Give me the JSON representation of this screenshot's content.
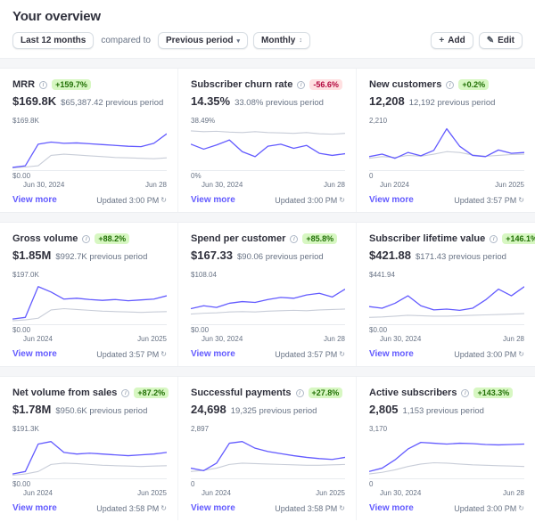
{
  "page": {
    "title": "Your overview"
  },
  "toolbar": {
    "date_range": "Last 12 months",
    "compared_to_label": "compared to",
    "comparison": "Previous period",
    "granularity": "Monthly",
    "add_label": "Add",
    "edit_label": "Edit"
  },
  "labels": {
    "view_more": "View more"
  },
  "icons": {
    "plus": "+",
    "pencil": "✎",
    "refresh": "↻",
    "chevron_down": "▾",
    "updown": "↕",
    "info": "i"
  },
  "colors": {
    "accent": "#635bff",
    "line_current": "#635bff",
    "line_previous": "#c8cdd8",
    "badge_positive_bg": "#d7f7c2",
    "badge_positive_text": "#217005",
    "badge_negative_bg": "#ffe0e1",
    "badge_negative_text": "#b3063d"
  },
  "cards": [
    {
      "title": "MRR",
      "badge": "+159.7%",
      "badge_type": "positive",
      "value": "$169.8K",
      "previous": "$65,387.42 previous period",
      "y_max": "$169.8K",
      "y_min": "$0.00",
      "x_start": "Jun 30, 2024",
      "x_end": "Jun 28",
      "updated": "Updated 3:00 PM",
      "series_current": [
        4,
        8,
        60,
        65,
        62,
        63,
        61,
        59,
        57,
        55,
        54,
        62,
        85
      ],
      "series_previous": [
        3,
        5,
        8,
        33,
        36,
        34,
        32,
        30,
        28,
        27,
        26,
        25,
        27
      ]
    },
    {
      "title": "Subscriber churn rate",
      "badge": "-56.6%",
      "badge_type": "negative",
      "value": "14.35%",
      "previous": "33.08% previous period",
      "y_max": "38.49%",
      "y_min": "0%",
      "x_start": "Jun 30, 2024",
      "x_end": "Jun 28",
      "updated": "Updated 3:00 PM",
      "series_current": [
        60,
        48,
        58,
        70,
        42,
        30,
        55,
        60,
        50,
        57,
        38,
        33,
        37
      ],
      "series_previous": [
        92,
        90,
        91,
        89,
        88,
        90,
        88,
        87,
        86,
        88,
        85,
        84,
        86
      ]
    },
    {
      "title": "New customers",
      "badge": "+0.2%",
      "badge_type": "positive",
      "value": "12,208",
      "previous": "12,192 previous period",
      "y_max": "2,210",
      "y_min": "0",
      "x_start": "Jun 2024",
      "x_end": "Jun 2025",
      "updated": "Updated 3:57 PM",
      "series_current": [
        30,
        36,
        26,
        40,
        32,
        45,
        97,
        55,
        33,
        30,
        46,
        38,
        40
      ],
      "series_previous": [
        26,
        30,
        28,
        33,
        31,
        36,
        42,
        40,
        34,
        31,
        33,
        35,
        36
      ]
    },
    {
      "title": "Gross volume",
      "badge": "+88.2%",
      "badge_type": "positive",
      "value": "$1.85M",
      "previous": "$992.7K previous period",
      "y_max": "$197.0K",
      "y_min": "$0.00",
      "x_start": "Jun 2024",
      "x_end": "Jun 2025",
      "updated": "Updated 3:57 PM",
      "series_current": [
        10,
        14,
        88,
        75,
        58,
        60,
        57,
        55,
        57,
        54,
        56,
        58,
        66
      ],
      "series_previous": [
        6,
        8,
        12,
        32,
        35,
        33,
        31,
        29,
        28,
        27,
        26,
        27,
        28
      ]
    },
    {
      "title": "Spend per customer",
      "badge": "+85.8%",
      "badge_type": "positive",
      "value": "$167.33",
      "previous": "$90.06 previous period",
      "y_max": "$108.04",
      "y_min": "$0.00",
      "x_start": "Jun 30, 2024",
      "x_end": "Jun 28",
      "updated": "Updated 3:57 PM",
      "series_current": [
        35,
        42,
        38,
        48,
        52,
        50,
        57,
        62,
        60,
        68,
        72,
        63,
        82
      ],
      "series_previous": [
        22,
        24,
        25,
        27,
        28,
        27,
        29,
        30,
        31,
        30,
        32,
        33,
        34
      ]
    },
    {
      "title": "Subscriber lifetime value",
      "badge": "+146.1%",
      "badge_type": "positive",
      "value": "$421.88",
      "previous": "$171.43 previous period",
      "y_max": "$441.94",
      "y_min": "$0.00",
      "x_start": "Jun 30, 2024",
      "x_end": "Jun 28",
      "updated": "Updated 3:00 PM",
      "series_current": [
        40,
        36,
        48,
        66,
        42,
        32,
        34,
        31,
        36,
        56,
        82,
        66,
        88
      ],
      "series_previous": [
        14,
        15,
        17,
        19,
        18,
        17,
        17,
        18,
        19,
        20,
        21,
        22,
        23
      ]
    },
    {
      "title": "Net volume from sales",
      "badge": "+87.2%",
      "badge_type": "positive",
      "value": "$1.78M",
      "previous": "$950.6K previous period",
      "y_max": "$191.3K",
      "y_min": "$0.00",
      "x_start": "Jun 2024",
      "x_end": "Jun 2025",
      "updated": "Updated 3:58 PM",
      "series_current": [
        8,
        14,
        80,
        86,
        60,
        56,
        58,
        56,
        54,
        52,
        54,
        56,
        60
      ],
      "series_previous": [
        5,
        8,
        14,
        31,
        34,
        33,
        31,
        29,
        28,
        27,
        26,
        27,
        28
      ]
    },
    {
      "title": "Successful payments",
      "badge": "+27.8%",
      "badge_type": "positive",
      "value": "24,698",
      "previous": "19,325 previous period",
      "y_max": "2,897",
      "y_min": "0",
      "x_start": "Jun 2024",
      "x_end": "Jun 2025",
      "updated": "Updated 3:58 PM",
      "series_current": [
        22,
        16,
        34,
        82,
        86,
        70,
        62,
        57,
        52,
        48,
        45,
        43,
        48
      ],
      "series_previous": [
        14,
        17,
        22,
        31,
        34,
        33,
        32,
        31,
        30,
        29,
        29,
        30,
        31
      ]
    },
    {
      "title": "Active subscribers",
      "badge": "+143.3%",
      "badge_type": "positive",
      "value": "2,805",
      "previous": "1,153 previous period",
      "y_max": "3,170",
      "y_min": "0",
      "x_start": "Jun 30, 2024",
      "x_end": "Jun 28",
      "updated": "Updated 3:00 PM",
      "series_current": [
        14,
        22,
        42,
        68,
        84,
        82,
        80,
        82,
        81,
        79,
        78,
        79,
        80
      ],
      "series_previous": [
        8,
        12,
        18,
        26,
        32,
        35,
        34,
        32,
        30,
        29,
        28,
        27,
        26
      ]
    }
  ]
}
